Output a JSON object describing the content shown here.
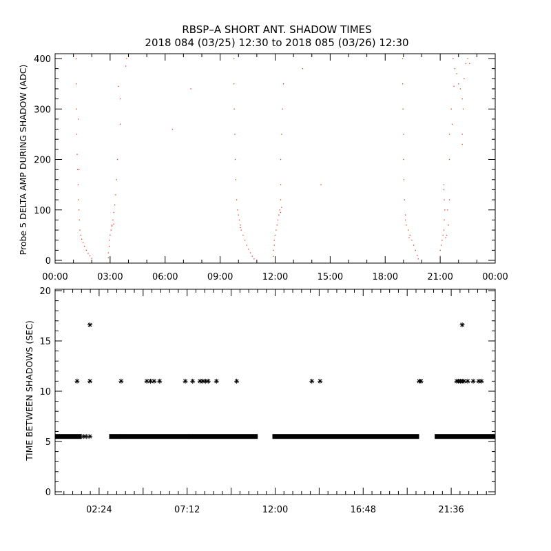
{
  "title_line1": "RBSP–A SHORT ANT. SHADOW TIMES",
  "title_line2": "2018 084 (03/25) 12:30 to 2018 085 (03/26) 12:30",
  "colors": {
    "points": "#e8321c",
    "axes": "#000000",
    "stars": "#000000"
  },
  "chart_data": [
    {
      "type": "scatter",
      "ylabel": "Probe 5 DELTA AMP DURING SHADOW (ADC)",
      "xlim": [
        "00:00",
        "24:00"
      ],
      "ylim": [
        0,
        400
      ],
      "xticks": [
        "00:00",
        "03:00",
        "06:00",
        "09:00",
        "12:00",
        "15:00",
        "18:00",
        "21:00",
        "00:00"
      ],
      "yticks": [
        "0",
        "100",
        "200",
        "300",
        "400"
      ],
      "series": [
        {
          "values": [
            [
              1.15,
              400
            ],
            [
              1.15,
              350
            ],
            [
              1.17,
              300
            ],
            [
              1.18,
              250
            ],
            [
              1.2,
              210
            ],
            [
              1.22,
              180
            ],
            [
              1.25,
              150
            ],
            [
              1.27,
              120
            ],
            [
              1.3,
              100
            ],
            [
              1.32,
              80
            ],
            [
              1.35,
              60
            ],
            [
              1.4,
              50
            ],
            [
              1.45,
              42
            ],
            [
              1.52,
              35
            ],
            [
              1.6,
              28
            ],
            [
              1.7,
              20
            ],
            [
              1.8,
              14
            ],
            [
              1.9,
              9
            ],
            [
              2.0,
              4
            ],
            [
              1.3,
              180
            ],
            [
              1.27,
              280
            ],
            [
              3.9,
              400
            ],
            [
              3.85,
              385
            ],
            [
              3.45,
              345
            ],
            [
              3.55,
              320
            ],
            [
              3.55,
              270
            ],
            [
              3.4,
              200
            ],
            [
              3.35,
              160
            ],
            [
              3.3,
              130
            ],
            [
              3.25,
              110
            ],
            [
              3.2,
              95
            ],
            [
              3.15,
              80
            ],
            [
              3.1,
              70
            ],
            [
              3.05,
              60
            ],
            [
              3.0,
              50
            ],
            [
              2.95,
              40
            ],
            [
              2.95,
              28
            ],
            [
              2.9,
              15
            ],
            [
              2.9,
              5
            ],
            [
              3.1,
              68
            ],
            [
              3.2,
              72
            ],
            [
              6.4,
              260
            ],
            [
              7.4,
              340
            ],
            [
              9.75,
              400
            ],
            [
              9.75,
              350
            ],
            [
              9.77,
              300
            ],
            [
              9.8,
              250
            ],
            [
              9.82,
              200
            ],
            [
              9.85,
              160
            ],
            [
              9.9,
              120
            ],
            [
              9.95,
              100
            ],
            [
              10.0,
              90
            ],
            [
              10.05,
              80
            ],
            [
              10.1,
              70
            ],
            [
              10.15,
              60
            ],
            [
              10.25,
              50
            ],
            [
              10.35,
              40
            ],
            [
              10.45,
              30
            ],
            [
              10.55,
              22
            ],
            [
              10.65,
              15
            ],
            [
              10.75,
              8
            ],
            [
              10.85,
              3
            ],
            [
              10.1,
              65
            ],
            [
              12.45,
              350
            ],
            [
              12.4,
              300
            ],
            [
              12.35,
              250
            ],
            [
              12.3,
              200
            ],
            [
              12.3,
              150
            ],
            [
              12.3,
              120
            ],
            [
              12.25,
              100
            ],
            [
              12.2,
              90
            ],
            [
              12.15,
              80
            ],
            [
              12.1,
              70
            ],
            [
              12.05,
              60
            ],
            [
              12.0,
              50
            ],
            [
              11.95,
              40
            ],
            [
              11.95,
              30
            ],
            [
              11.9,
              20
            ],
            [
              11.9,
              8
            ],
            [
              12.3,
              95
            ],
            [
              12.35,
              105
            ],
            [
              13.5,
              380
            ],
            [
              14.5,
              150
            ],
            [
              18.95,
              400
            ],
            [
              18.95,
              350
            ],
            [
              18.97,
              300
            ],
            [
              19.0,
              250
            ],
            [
              19.0,
              200
            ],
            [
              19.02,
              160
            ],
            [
              19.05,
              120
            ],
            [
              19.1,
              90
            ],
            [
              19.15,
              70
            ],
            [
              19.25,
              60
            ],
            [
              19.35,
              50
            ],
            [
              19.45,
              40
            ],
            [
              19.55,
              30
            ],
            [
              19.65,
              20
            ],
            [
              19.75,
              10
            ],
            [
              19.8,
              3
            ],
            [
              19.1,
              80
            ],
            [
              19.3,
              45
            ],
            [
              21.2,
              150
            ],
            [
              21.2,
              140
            ],
            [
              21.22,
              120
            ],
            [
              21.25,
              100
            ],
            [
              21.22,
              80
            ],
            [
              21.2,
              60
            ],
            [
              21.15,
              50
            ],
            [
              21.1,
              40
            ],
            [
              21.05,
              30
            ],
            [
              21.0,
              20
            ],
            [
              21.0,
              8
            ],
            [
              21.4,
              100
            ],
            [
              21.45,
              70
            ],
            [
              21.35,
              50
            ],
            [
              21.3,
              45
            ],
            [
              21.5,
              120
            ],
            [
              21.7,
              400
            ],
            [
              21.8,
              380
            ],
            [
              21.9,
              370
            ],
            [
              22.0,
              350
            ],
            [
              22.1,
              340
            ],
            [
              22.2,
              320
            ],
            [
              22.25,
              300
            ],
            [
              22.2,
              250
            ],
            [
              22.2,
              230
            ],
            [
              22.3,
              360
            ],
            [
              22.4,
              390
            ],
            [
              22.5,
              400
            ],
            [
              22.6,
              390
            ],
            [
              21.75,
              345
            ],
            [
              21.6,
              300
            ],
            [
              21.65,
              270
            ],
            [
              21.5,
              250
            ],
            [
              21.5,
              200
            ]
          ]
        }
      ]
    },
    {
      "type": "scatter",
      "ylabel": "TIME BETWEEN SHADOWS (SEC)",
      "xlim": [
        0,
        24
      ],
      "ylim": [
        0,
        20
      ],
      "xticks": [
        "02:24",
        "07:12",
        "12:00",
        "16:48",
        "21:36"
      ],
      "yticks": [
        "0",
        "5",
        "10",
        "15",
        "20"
      ],
      "series": [
        {
          "values": [
            [
              1.2,
              11
            ],
            [
              1.9,
              11
            ],
            [
              1.9,
              16.6
            ],
            [
              3.6,
              11
            ],
            [
              5.0,
              11
            ],
            [
              5.2,
              11
            ],
            [
              5.4,
              11
            ],
            [
              5.7,
              11
            ],
            [
              7.1,
              11
            ],
            [
              7.5,
              11
            ],
            [
              7.9,
              11
            ],
            [
              8.05,
              11
            ],
            [
              8.2,
              11
            ],
            [
              8.35,
              11
            ],
            [
              8.8,
              11
            ],
            [
              9.9,
              11
            ],
            [
              14.0,
              11
            ],
            [
              14.45,
              11
            ],
            [
              19.85,
              11
            ],
            [
              19.95,
              11
            ],
            [
              21.9,
              11
            ],
            [
              22.0,
              11
            ],
            [
              22.1,
              11
            ],
            [
              22.2,
              11
            ],
            [
              22.3,
              11
            ],
            [
              22.5,
              11
            ],
            [
              22.8,
              11
            ],
            [
              23.1,
              11
            ],
            [
              23.25,
              11
            ],
            [
              22.2,
              16.6
            ]
          ]
        }
      ],
      "bands": {
        "value": 5.5,
        "segments": [
          [
            0.0,
            1.45
          ],
          [
            2.95,
            11.05
          ],
          [
            11.85,
            19.85
          ],
          [
            20.7,
            24.0
          ]
        ],
        "scattered": [
          1.55,
          1.7,
          1.9,
          3.6,
          7.3
        ]
      }
    }
  ]
}
